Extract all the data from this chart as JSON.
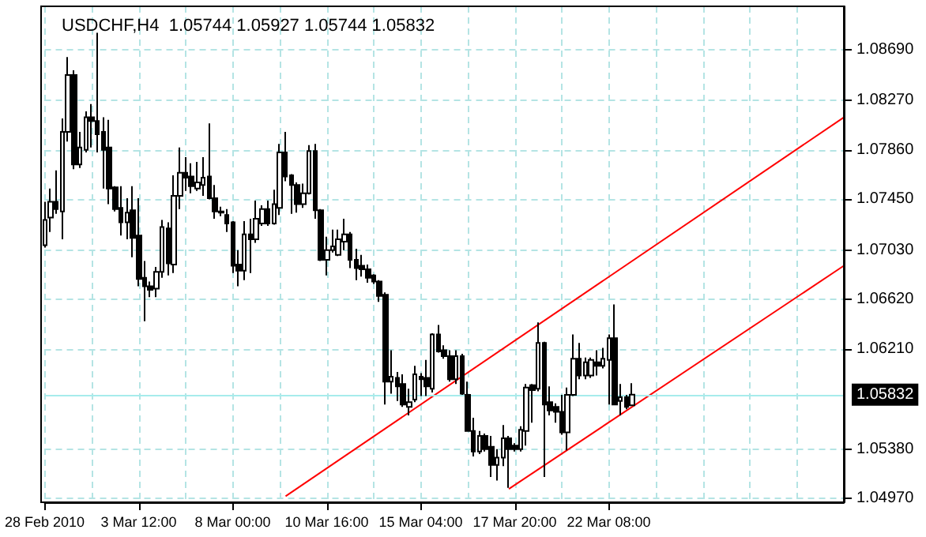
{
  "chart_data": {
    "type": "candlestick",
    "title": "USDCHF,H4  1.05744 1.05927 1.05744 1.05832",
    "categories": [
      "28 Feb 2010",
      null,
      null,
      null,
      null,
      null,
      null,
      null,
      null,
      null,
      null,
      null,
      null,
      null,
      null,
      null,
      "3 Mar 12:00",
      null,
      null,
      null,
      null,
      null,
      null,
      null,
      null,
      null,
      null,
      null,
      null,
      null,
      null,
      null,
      "8 Mar 00:00",
      null,
      null,
      null,
      null,
      null,
      null,
      null,
      null,
      null,
      null,
      null,
      null,
      null,
      null,
      null,
      "10 Mar 16:00",
      null,
      null,
      null,
      null,
      null,
      null,
      null,
      null,
      null,
      null,
      null,
      null,
      null,
      null,
      null,
      "15 Mar 04:00",
      null,
      null,
      null,
      null,
      null,
      null,
      null,
      null,
      null,
      null,
      null,
      null,
      null,
      null,
      null,
      "17 Mar 20:00",
      null,
      null,
      null,
      null,
      null,
      null,
      null,
      null,
      null,
      null,
      null,
      null,
      null,
      null,
      null,
      "22 Mar 08:00",
      null,
      null,
      null,
      null,
      null,
      null,
      null,
      null,
      null,
      null,
      null,
      null,
      null,
      null,
      null,
      null,
      null,
      null,
      null,
      null,
      null,
      null,
      null,
      null,
      null,
      null,
      null,
      null,
      null,
      null,
      null,
      null,
      null,
      null,
      null,
      null,
      null,
      null,
      null,
      null
    ],
    "ohlc": [
      [
        1.0707,
        1.0743,
        1.0705,
        1.0728
      ],
      [
        1.073,
        1.0754,
        1.0718,
        1.0743
      ],
      [
        1.0743,
        1.0769,
        1.0733,
        1.0737
      ],
      [
        1.0735,
        1.0812,
        1.0712,
        1.0801
      ],
      [
        1.0801,
        1.0863,
        1.0793,
        1.0848
      ],
      [
        1.0848,
        1.0852,
        1.077,
        1.0774
      ],
      [
        1.0774,
        1.0801,
        1.0771,
        1.0788
      ],
      [
        1.0786,
        1.0818,
        1.0784,
        1.0813
      ],
      [
        1.0813,
        1.0824,
        1.0788,
        1.081
      ],
      [
        1.081,
        1.0883,
        1.0784,
        1.0799
      ],
      [
        1.0801,
        1.0813,
        1.0754,
        1.0786
      ],
      [
        1.0788,
        1.0811,
        1.0741,
        1.0754
      ],
      [
        1.0755,
        1.0756,
        1.0735,
        1.0737
      ],
      [
        1.0738,
        1.0756,
        1.0715,
        1.0726
      ],
      [
        1.0726,
        1.0746,
        1.0712,
        1.0734
      ],
      [
        1.0736,
        1.0756,
        1.0697,
        1.0713
      ],
      [
        1.0715,
        1.0746,
        1.0673,
        1.0679
      ],
      [
        1.068,
        1.0694,
        1.0644,
        1.0673
      ],
      [
        1.0673,
        1.0677,
        1.0664,
        1.067
      ],
      [
        1.0671,
        1.0689,
        1.0664,
        1.0685
      ],
      [
        1.0685,
        1.0728,
        1.068,
        1.0722
      ],
      [
        1.0721,
        1.0726,
        1.0682,
        1.0692
      ],
      [
        1.0691,
        1.0765,
        1.0684,
        1.0748
      ],
      [
        1.0748,
        1.0788,
        1.0737,
        1.0767
      ],
      [
        1.0767,
        1.078,
        1.0752,
        1.0763
      ],
      [
        1.0764,
        1.0775,
        1.075,
        1.0756
      ],
      [
        1.0754,
        1.0776,
        1.0752,
        1.0759
      ],
      [
        1.0757,
        1.078,
        1.0748,
        1.0763
      ],
      [
        1.0764,
        1.0808,
        1.0745,
        1.0746
      ],
      [
        1.0746,
        1.0757,
        1.0729,
        1.0735
      ],
      [
        1.0735,
        1.0739,
        1.0731,
        1.0734
      ],
      [
        1.0732,
        1.0737,
        1.0718,
        1.0725
      ],
      [
        1.0726,
        1.0727,
        1.0684,
        1.069
      ],
      [
        1.0691,
        1.0703,
        1.0673,
        1.0686
      ],
      [
        1.0686,
        1.0727,
        1.0678,
        1.0716
      ],
      [
        1.0716,
        1.0729,
        1.0684,
        1.0712
      ],
      [
        1.0712,
        1.0744,
        1.0709,
        1.0729
      ],
      [
        1.0725,
        1.074,
        1.0723,
        1.0737
      ],
      [
        1.0737,
        1.0744,
        1.0723,
        1.0725
      ],
      [
        1.0725,
        1.0753,
        1.0724,
        1.0741
      ],
      [
        1.0738,
        1.0791,
        1.0732,
        1.0784
      ],
      [
        1.0784,
        1.0801,
        1.076,
        1.0764
      ],
      [
        1.0765,
        1.0766,
        1.0733,
        1.0757
      ],
      [
        1.0757,
        1.0759,
        1.0734,
        1.0741
      ],
      [
        1.0741,
        1.0758,
        1.0738,
        1.075
      ],
      [
        1.075,
        1.079,
        1.0749,
        1.0785
      ],
      [
        1.0785,
        1.0791,
        1.0729,
        1.0736
      ],
      [
        1.0736,
        1.0737,
        1.0694,
        1.0695
      ],
      [
        1.0695,
        1.0714,
        1.0682,
        1.0703
      ],
      [
        1.0703,
        1.072,
        1.0701,
        1.0706
      ],
      [
        1.0699,
        1.072,
        1.0698,
        1.0712
      ],
      [
        1.071,
        1.0729,
        1.0703,
        1.0716
      ],
      [
        1.0716,
        1.0718,
        1.0688,
        1.0695
      ],
      [
        1.0695,
        1.0704,
        1.0678,
        1.0688
      ],
      [
        1.069,
        1.0699,
        1.0681,
        1.0687
      ],
      [
        1.0687,
        1.0691,
        1.0676,
        1.068
      ],
      [
        1.0682,
        1.0683,
        1.0675,
        1.0677
      ],
      [
        1.0677,
        1.0678,
        1.066,
        1.0665
      ],
      [
        1.0666,
        1.0668,
        1.0575,
        1.0594
      ],
      [
        1.0594,
        1.062,
        1.0584,
        1.0598
      ],
      [
        1.0597,
        1.0602,
        1.0578,
        1.059
      ],
      [
        1.0592,
        1.06,
        1.0573,
        1.0575
      ],
      [
        1.0573,
        1.0588,
        1.0566,
        1.0577
      ],
      [
        1.0579,
        1.0607,
        1.0577,
        1.06
      ],
      [
        1.0598,
        1.0601,
        1.0582,
        1.0596
      ],
      [
        1.0597,
        1.0612,
        1.0582,
        1.059
      ],
      [
        1.0588,
        1.0634,
        1.0585,
        1.0633
      ],
      [
        1.0633,
        1.0641,
        1.0618,
        1.0619
      ],
      [
        1.062,
        1.0624,
        1.0613,
        1.0615
      ],
      [
        1.0615,
        1.062,
        1.0594,
        1.0596
      ],
      [
        1.0596,
        1.062,
        1.0592,
        1.0615
      ],
      [
        1.0615,
        1.0617,
        1.0583,
        1.0584
      ],
      [
        1.0583,
        1.0594,
        1.0553,
        1.0553
      ],
      [
        1.0553,
        1.0564,
        1.0532,
        1.0536
      ],
      [
        1.0536,
        1.0553,
        1.0534,
        1.0549
      ],
      [
        1.0549,
        1.0551,
        1.0536,
        1.0538
      ],
      [
        1.054,
        1.0549,
        1.0515,
        1.0525
      ],
      [
        1.0525,
        1.0538,
        1.0512,
        1.0531
      ],
      [
        1.0531,
        1.0558,
        1.0524,
        1.0547
      ],
      [
        1.0547,
        1.0549,
        1.0506,
        1.0538
      ],
      [
        1.0541,
        1.0543,
        1.0536,
        1.0538
      ],
      [
        1.0538,
        1.0557,
        1.0536,
        1.0554
      ],
      [
        1.0553,
        1.0592,
        1.0541,
        1.0589
      ],
      [
        1.0591,
        1.0592,
        1.056,
        1.0587
      ],
      [
        1.0588,
        1.0643,
        1.0586,
        1.0626
      ],
      [
        1.0626,
        1.0627,
        1.0515,
        1.0575
      ],
      [
        1.0577,
        1.059,
        1.0566,
        1.057
      ],
      [
        1.0573,
        1.0576,
        1.056,
        1.0569
      ],
      [
        1.0569,
        1.0583,
        1.055,
        1.0552
      ],
      [
        1.0552,
        1.0589,
        1.0537,
        1.0583
      ],
      [
        1.0583,
        1.0633,
        1.0582,
        1.0613
      ],
      [
        1.0613,
        1.0626,
        1.0596,
        1.0599
      ],
      [
        1.0599,
        1.0614,
        1.0596,
        1.061
      ],
      [
        1.0599,
        1.0614,
        1.0597,
        1.0612
      ],
      [
        1.061,
        1.062,
        1.0599,
        1.0607
      ],
      [
        1.0607,
        1.0622,
        1.0605,
        1.0613
      ],
      [
        1.0612,
        1.0633,
        1.0575,
        1.063
      ],
      [
        1.063,
        1.0658,
        1.0575,
        1.0575
      ],
      [
        1.0578,
        1.0592,
        1.0566,
        1.0581
      ],
      [
        1.0581,
        1.0583,
        1.0571,
        1.0573
      ],
      [
        1.05744,
        1.05927,
        1.05744,
        1.05832
      ],
      null,
      null,
      null,
      null,
      null,
      null,
      null,
      null,
      null,
      null,
      null,
      null,
      null,
      null,
      null,
      null,
      null,
      null,
      null,
      null,
      null,
      null,
      null,
      null,
      null,
      null,
      null,
      null,
      null,
      null,
      null,
      null,
      null,
      null,
      null,
      null
    ],
    "series": [
      {
        "type": "line",
        "color": "#ff0000",
        "values": [
          null,
          null,
          null,
          null,
          null,
          null,
          null,
          null,
          null,
          null,
          null,
          null,
          null,
          null,
          null,
          null,
          null,
          null,
          null,
          null,
          null,
          null,
          null,
          null,
          null,
          null,
          null,
          null,
          null,
          null,
          null,
          null,
          null,
          null,
          null,
          null,
          null,
          null,
          null,
          null,
          null,
          1.0499,
          null,
          null,
          null,
          null,
          null,
          null,
          null,
          null,
          null,
          null,
          null,
          null,
          null,
          null,
          null,
          null,
          null,
          null,
          null,
          null,
          null,
          null,
          null,
          null,
          null,
          null,
          null,
          null,
          null,
          null,
          null,
          null,
          null,
          null,
          null,
          null,
          null,
          null,
          null,
          null,
          null,
          null,
          null,
          null,
          null,
          null,
          null,
          null,
          null,
          null,
          null,
          null,
          null,
          null,
          null,
          null,
          null,
          null,
          null,
          null,
          null,
          null,
          null,
          null,
          null,
          null,
          null,
          null,
          null,
          null,
          null,
          null,
          null,
          null,
          null,
          null,
          null,
          null,
          null,
          null,
          null,
          null,
          null,
          null,
          null,
          null,
          null,
          null,
          null,
          null,
          null,
          null,
          null,
          null,
          1.0813
        ]
      },
      {
        "type": "line",
        "color": "#ff0000",
        "values": [
          null,
          null,
          null,
          null,
          null,
          null,
          null,
          null,
          null,
          null,
          null,
          null,
          null,
          null,
          null,
          null,
          null,
          null,
          null,
          null,
          null,
          null,
          null,
          null,
          null,
          null,
          null,
          null,
          null,
          null,
          null,
          null,
          null,
          null,
          null,
          null,
          null,
          null,
          null,
          null,
          null,
          null,
          null,
          null,
          null,
          null,
          null,
          null,
          null,
          null,
          null,
          null,
          null,
          null,
          null,
          null,
          null,
          null,
          null,
          null,
          null,
          null,
          null,
          null,
          null,
          null,
          null,
          null,
          null,
          null,
          null,
          null,
          null,
          null,
          null,
          null,
          null,
          null,
          null,
          1.0505,
          null,
          null,
          null,
          null,
          null,
          null,
          null,
          null,
          null,
          null,
          null,
          null,
          null,
          null,
          null,
          null,
          null,
          null,
          null,
          null,
          null,
          null,
          null,
          null,
          null,
          null,
          null,
          null,
          null,
          null,
          null,
          null,
          null,
          null,
          null,
          null,
          null,
          null,
          null,
          null,
          null,
          null,
          null,
          null,
          null,
          null,
          null,
          null,
          null,
          null,
          null,
          null,
          null,
          null,
          null,
          null,
          1.069
        ]
      }
    ],
    "ylim": [
      1.0494,
      1.0905
    ],
    "yticks": [
      {
        "value": 1.0869,
        "label": "1.08690"
      },
      {
        "value": 1.0827,
        "label": "1.08270"
      },
      {
        "value": 1.0786,
        "label": "1.07860"
      },
      {
        "value": 1.0745,
        "label": "1.07450"
      },
      {
        "value": 1.0703,
        "label": "1.07030"
      },
      {
        "value": 1.0662,
        "label": "1.06620"
      },
      {
        "value": 1.0621,
        "label": "1.06210"
      },
      {
        "value": 1.0538,
        "label": "1.05380"
      },
      {
        "value": 1.0497,
        "label": "1.04970"
      }
    ],
    "ref_lines": [
      {
        "axis": "y",
        "value": 1.05832,
        "label": "1.05832",
        "color": "#a6ecec"
      }
    ],
    "grid": true
  }
}
